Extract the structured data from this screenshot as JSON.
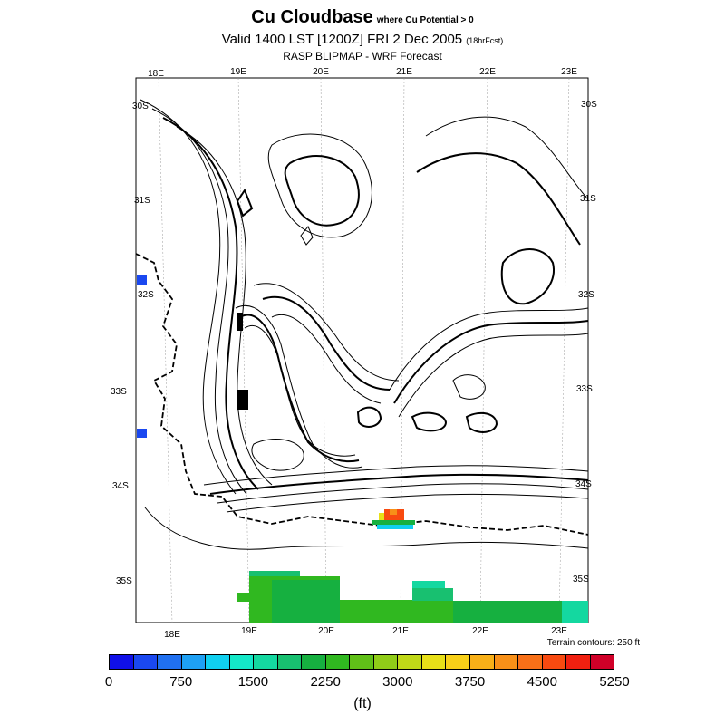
{
  "title": {
    "main": "Cu Cloudbase",
    "qualifier": "where Cu Potential > 0",
    "valid_line": "Valid 1400 LST [1200Z] FRI 2 Dec 2005",
    "forecast_hours": "(18hrFcst)",
    "subtitle": "RASP BLIPMAP - WRF Forecast"
  },
  "map": {
    "lon_labels": [
      "18E",
      "19E",
      "20E",
      "21E",
      "22E",
      "23E"
    ],
    "lat_labels": [
      "30S",
      "31S",
      "32S",
      "33S",
      "34S",
      "35S"
    ]
  },
  "terrain_note": "Terrain contours: 250 ft",
  "colorbar": {
    "colors": [
      "#1010e8",
      "#1a48f0",
      "#2070f0",
      "#1ea0f4",
      "#10d0f0",
      "#14e8c8",
      "#14d8a0",
      "#18c070",
      "#16b040",
      "#30b820",
      "#60c018",
      "#90cc18",
      "#c0d818",
      "#e8e018",
      "#f8d018",
      "#f8b018",
      "#f89018",
      "#f87018",
      "#f84a10",
      "#f02010",
      "#d00028"
    ],
    "tick_labels": [
      "0",
      "750",
      "1500",
      "2250",
      "3000",
      "3750",
      "4500",
      "5250"
    ],
    "unit": "(ft)"
  }
}
